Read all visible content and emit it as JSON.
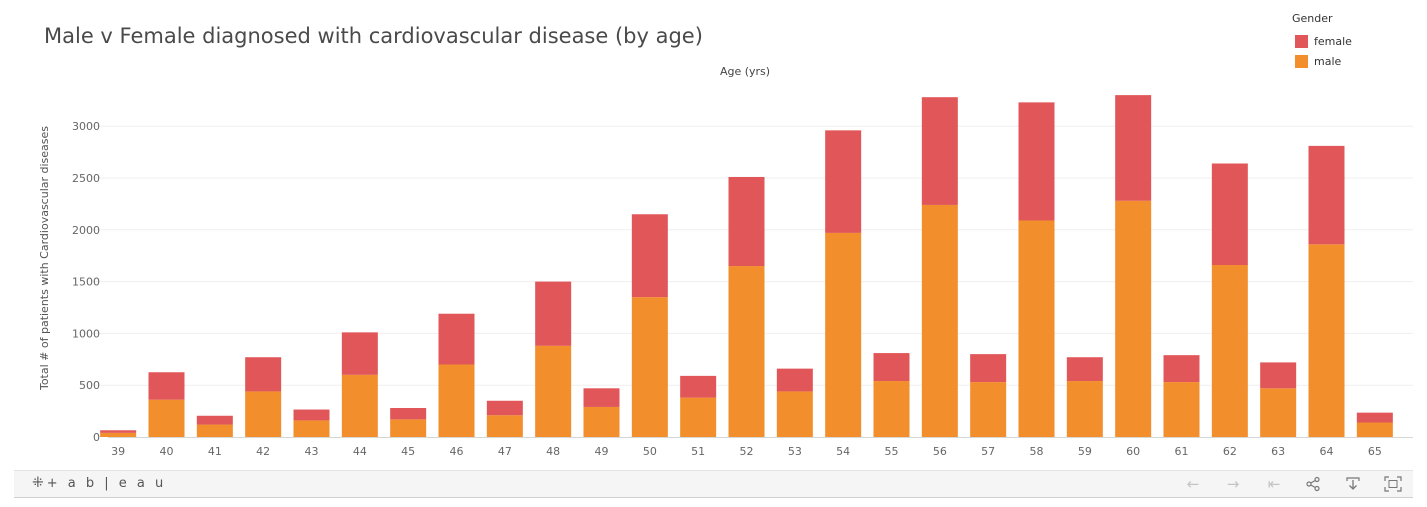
{
  "title": "Male v Female diagnosed with cardiovascular disease (by age)",
  "toolbar": {
    "logo_text": "+ a b | e a u",
    "buttons": [
      "undo-icon",
      "redo-icon",
      "revert-icon",
      "share-icon",
      "download-icon",
      "fullscreen-icon"
    ]
  },
  "colors": {
    "female": "#e15759",
    "male": "#f28e2b",
    "grid": "#efefef"
  },
  "chart_data": {
    "type": "bar",
    "stacked": true,
    "title": "Male v Female diagnosed with cardiovascular disease (by age)",
    "xlabel": "Age (yrs)",
    "ylabel": "Total # of patients with Cardiovascular diseases",
    "ylim": [
      0,
      3350
    ],
    "yticks": [
      0,
      500,
      1000,
      1500,
      2000,
      2500,
      3000
    ],
    "grid": true,
    "legend": {
      "title": "Gender",
      "position": "top-right",
      "items": [
        "female",
        "male"
      ]
    },
    "categories": [
      "39",
      "40",
      "41",
      "42",
      "43",
      "44",
      "45",
      "46",
      "47",
      "48",
      "49",
      "50",
      "51",
      "52",
      "53",
      "54",
      "55",
      "56",
      "57",
      "58",
      "59",
      "60",
      "61",
      "62",
      "63",
      "64",
      "65"
    ],
    "series": [
      {
        "name": "male",
        "values": [
          40,
          360,
          120,
          440,
          160,
          600,
          170,
          700,
          210,
          880,
          290,
          1350,
          380,
          1650,
          440,
          1970,
          540,
          2240,
          530,
          2090,
          540,
          2280,
          530,
          1660,
          470,
          1860,
          140
        ]
      },
      {
        "name": "female",
        "values": [
          25,
          265,
          85,
          330,
          105,
          410,
          110,
          490,
          140,
          620,
          180,
          800,
          210,
          860,
          220,
          990,
          270,
          1040,
          270,
          1140,
          230,
          1020,
          260,
          980,
          250,
          950,
          95
        ]
      }
    ]
  }
}
